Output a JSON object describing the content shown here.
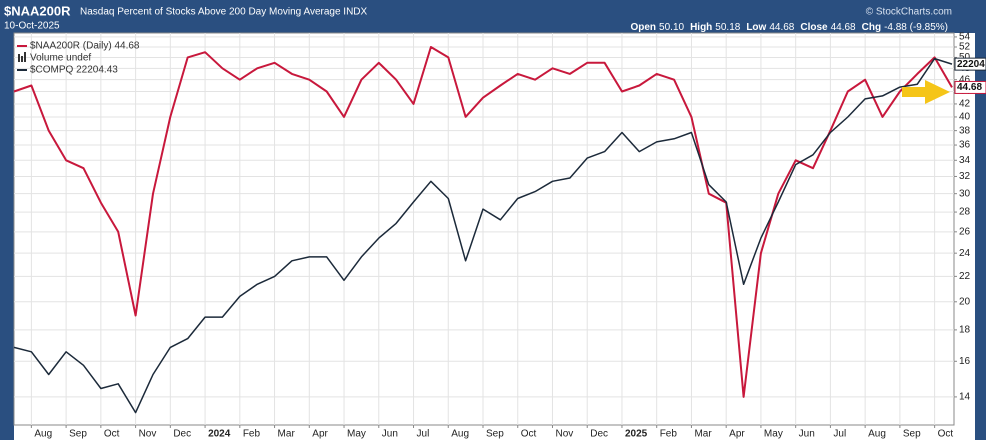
{
  "chart_data": {
    "type": "line",
    "title": "$NAA200R",
    "subtitle": "Nasdaq Percent of Stocks Above 200 Day Moving Average INDX",
    "date": "10-Oct-2025",
    "source": "© StockCharts.com",
    "quote": [
      {
        "label": "Open",
        "value": "50.10"
      },
      {
        "label": "High",
        "value": "50.18"
      },
      {
        "label": "Low",
        "value": "44.68"
      },
      {
        "label": "Close",
        "value": "44.68"
      },
      {
        "label": "Chg",
        "value": "-4.88 (-9.85%)"
      }
    ],
    "volume_legend": "Volume undef",
    "categories": [
      null,
      "Aug",
      null,
      "Sep",
      null,
      "Oct",
      null,
      "Nov",
      null,
      "Dec",
      null,
      "2024",
      null,
      "Feb",
      null,
      "Mar",
      null,
      "Apr",
      null,
      "May",
      null,
      "Jun",
      null,
      "Jul",
      null,
      "Aug",
      null,
      "Sep",
      null,
      "Oct",
      null,
      "Nov",
      null,
      "Dec",
      null,
      "2025",
      null,
      "Feb",
      null,
      "Mar",
      null,
      "Apr",
      null,
      "May",
      null,
      "Jun",
      null,
      "Jul",
      null,
      "Aug",
      null,
      "Sep",
      null,
      "Oct",
      null
    ],
    "series": [
      {
        "name": "$NAA200R (Daily) 44.68",
        "color": "#c8183c",
        "tag": "44.68",
        "values": [
          44,
          45,
          38,
          34,
          33,
          29,
          26,
          19,
          30,
          40,
          50,
          51,
          48,
          46,
          48,
          49,
          47,
          46,
          44,
          40,
          46,
          49,
          46,
          42,
          52,
          50,
          40,
          43,
          45,
          47,
          46,
          48,
          47,
          49,
          49,
          44,
          45,
          47,
          46,
          40,
          30,
          29,
          14,
          24,
          30,
          34,
          33,
          38,
          44,
          46,
          40,
          44,
          47,
          50,
          44.68
        ]
      },
      {
        "name": "$COMPQ 22204.43",
        "color": "#1c2a3a",
        "tag": "22204",
        "axis": "y2",
        "values": [
          14100,
          14000,
          13500,
          14000,
          13700,
          13200,
          13300,
          12700,
          13500,
          14100,
          14300,
          14800,
          14800,
          15300,
          15600,
          15800,
          16200,
          16300,
          16300,
          15700,
          16300,
          16800,
          17200,
          17800,
          18400,
          17900,
          16200,
          17600,
          17300,
          17900,
          18100,
          18400,
          18500,
          19100,
          19300,
          19900,
          19300,
          19600,
          19700,
          19900,
          18300,
          17800,
          15600,
          16800,
          17800,
          18900,
          19200,
          19900,
          20400,
          21000,
          21100,
          21400,
          21500,
          22400,
          22204
        ]
      }
    ],
    "log_scale": true,
    "ylim": [
      12.6,
      54.8
    ],
    "yticks": [
      14,
      16,
      18,
      20,
      22,
      24,
      26,
      28,
      30,
      32,
      34,
      36,
      38,
      40,
      42,
      44,
      46,
      48,
      50,
      52,
      54
    ],
    "y2lim": [
      12450,
      23340
    ],
    "grid": true
  }
}
